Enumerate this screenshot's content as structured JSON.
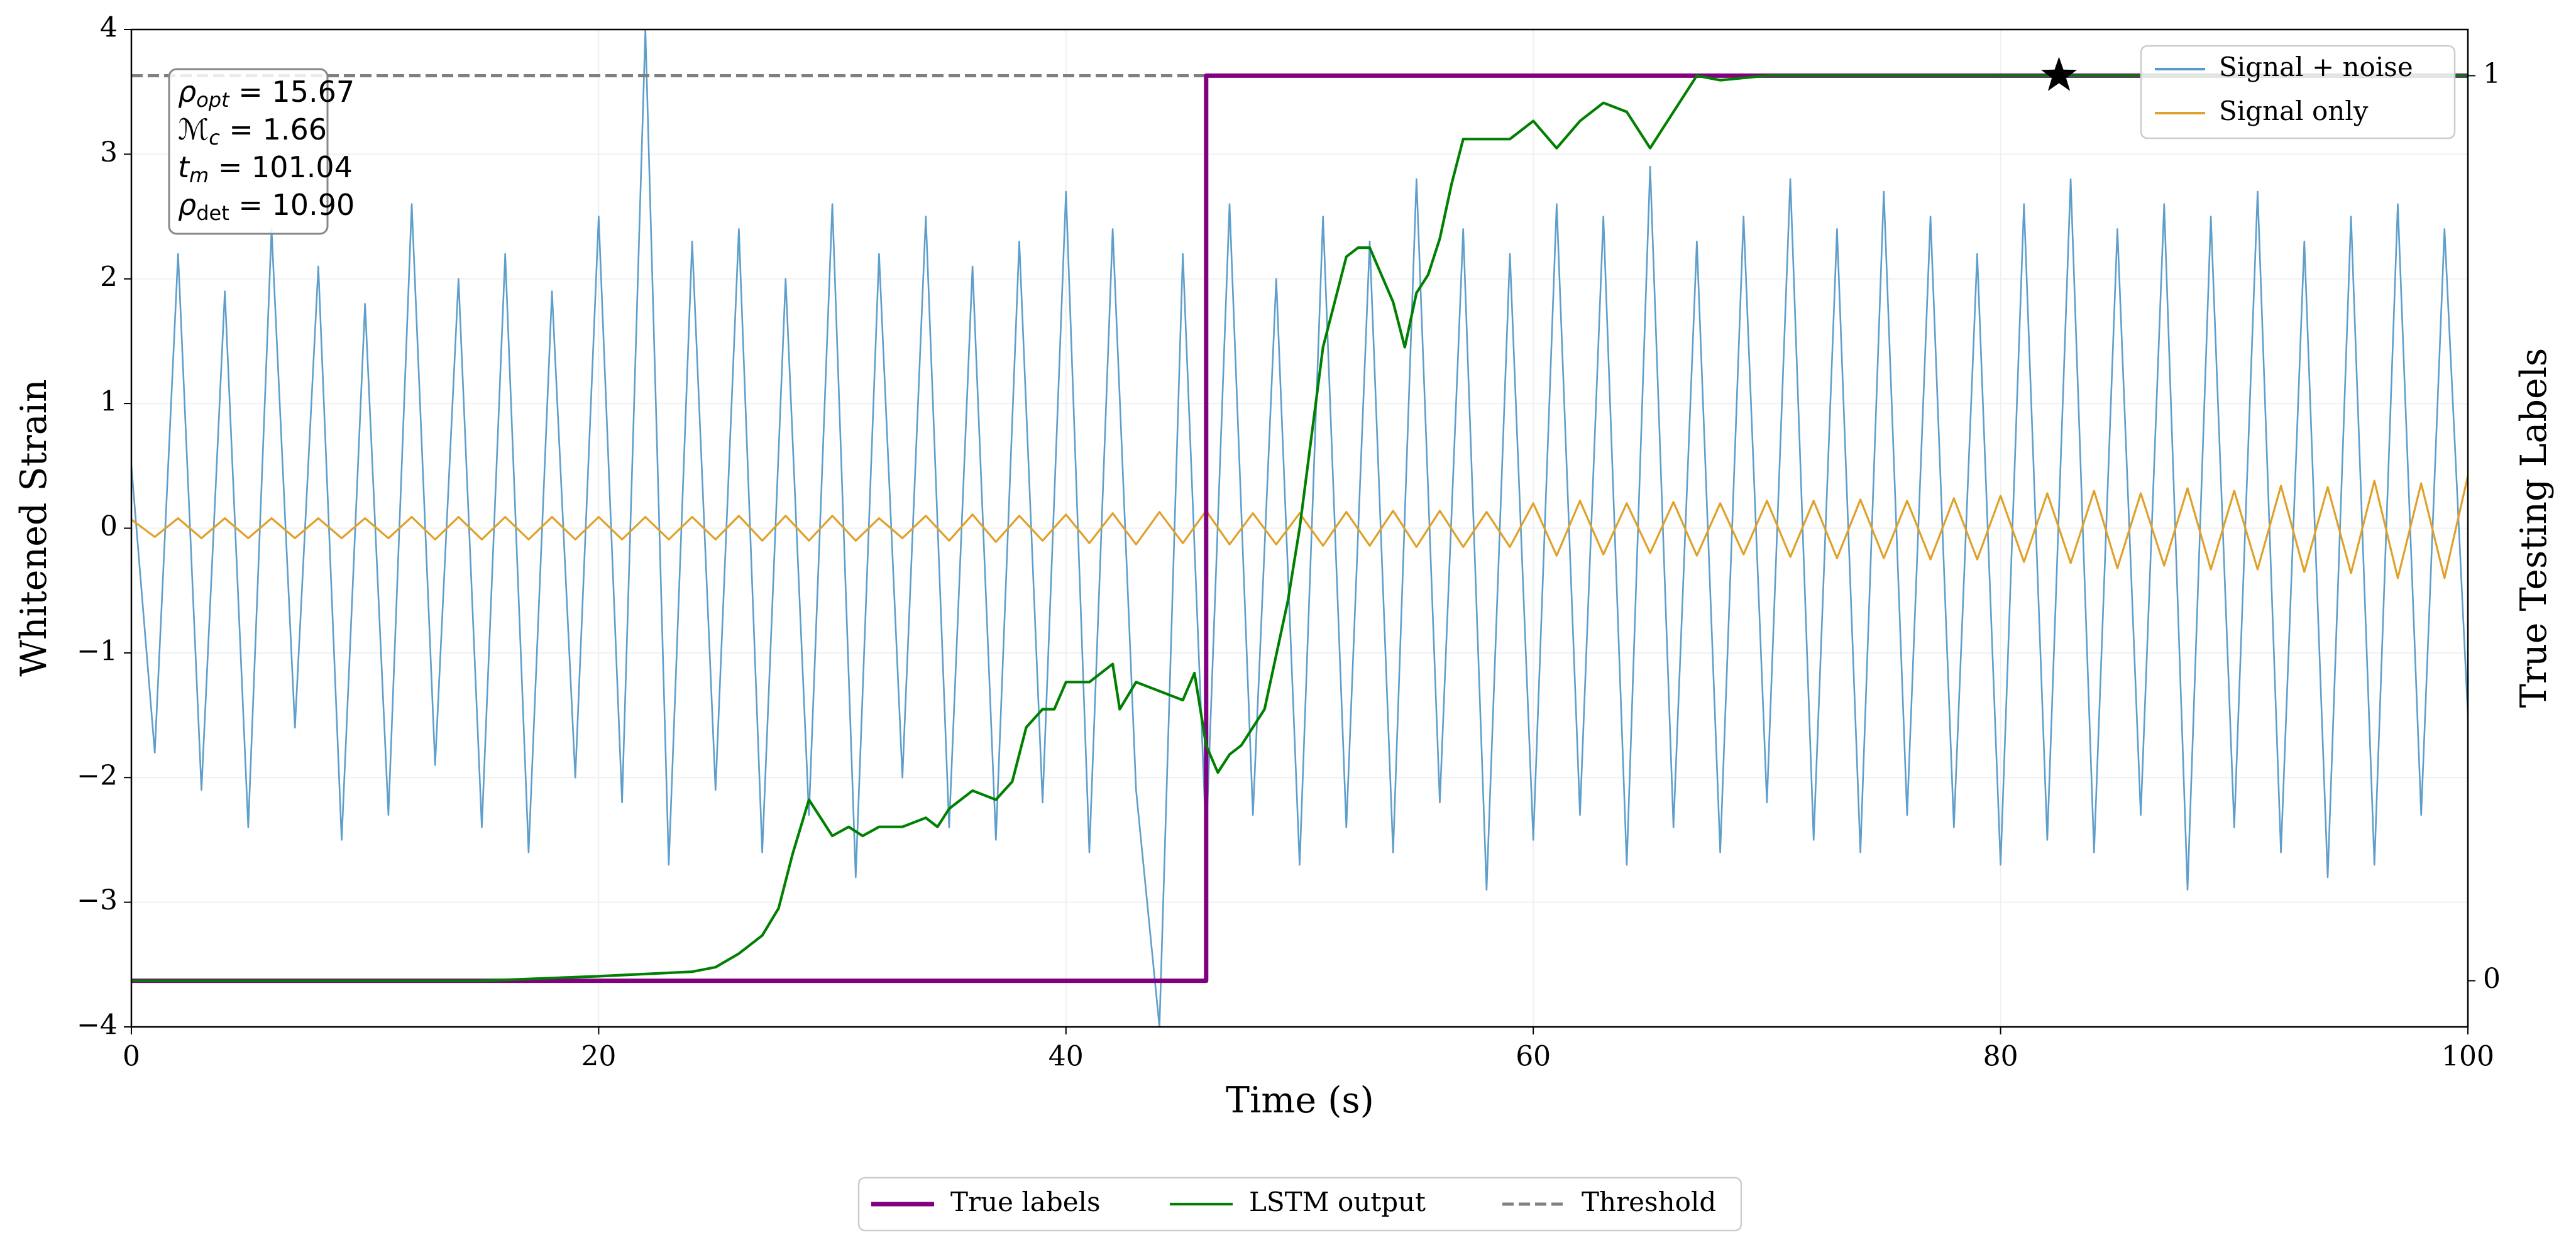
{
  "chart_data": {
    "type": "line",
    "xlabel": "Time (s)",
    "ylabel": "Whitened Strain",
    "y2label": "True Testing Labels",
    "xlim": [
      0,
      100
    ],
    "xticks": [
      0,
      20,
      40,
      60,
      80,
      100
    ],
    "ylim": [
      -4,
      4
    ],
    "yticks": [
      {
        "value": -4,
        "label": "−4"
      },
      {
        "value": -3,
        "label": "−3"
      },
      {
        "value": -2,
        "label": "−2"
      },
      {
        "value": -1,
        "label": "−1"
      },
      0,
      1,
      2,
      3,
      4
    ],
    "y2lim": [
      -0.051,
      1.051
    ],
    "y2ticks": [
      0,
      1
    ],
    "grid": true,
    "x": [
      0,
      1,
      2,
      3,
      4,
      5,
      6,
      7,
      8,
      9,
      10,
      11,
      12,
      13,
      14,
      15,
      16,
      17,
      18,
      19,
      20,
      21,
      22,
      23,
      24,
      25,
      26,
      27,
      28,
      29,
      30,
      31,
      32,
      33,
      34,
      35,
      36,
      37,
      38,
      39,
      40,
      41,
      42,
      43,
      44,
      45,
      46,
      47,
      48,
      49,
      50,
      51,
      52,
      53,
      54,
      55,
      56,
      57,
      58,
      59,
      60,
      61,
      62,
      63,
      64,
      65,
      66,
      67,
      68,
      69,
      70,
      71,
      72,
      73,
      74,
      75,
      76,
      77,
      78,
      79,
      80,
      81,
      82,
      83,
      84,
      85,
      86,
      87,
      88,
      89,
      90,
      91,
      92,
      93,
      94,
      95,
      96,
      97,
      98,
      99,
      100
    ],
    "series": [
      {
        "name": "Signal + noise",
        "color": "#5599c8",
        "legend": "upper right",
        "values": [
          0.5,
          -1.8,
          2.2,
          -2.1,
          1.9,
          -2.4,
          2.4,
          -1.6,
          2.1,
          -2.5,
          1.8,
          -2.3,
          2.6,
          -1.9,
          2.0,
          -2.4,
          2.2,
          -2.6,
          1.9,
          -2.0,
          2.5,
          -2.2,
          4.0,
          -2.7,
          2.3,
          -2.1,
          2.4,
          -2.6,
          2.0,
          -2.3,
          2.6,
          -2.8,
          2.2,
          -2.0,
          2.5,
          -2.4,
          2.1,
          -2.5,
          2.3,
          -2.2,
          2.7,
          -2.6,
          2.4,
          -2.1,
          -4.0,
          2.2,
          -2.5,
          2.6,
          -2.3,
          2.0,
          -2.7,
          2.5,
          -2.4,
          2.3,
          -2.6,
          2.8,
          -2.2,
          2.4,
          -2.9,
          2.2,
          -2.5,
          2.6,
          -2.3,
          2.5,
          -2.7,
          2.9,
          -2.4,
          2.3,
          -2.6,
          2.5,
          -2.2,
          2.8,
          -2.5,
          2.4,
          -2.6,
          2.7,
          -2.3,
          2.5,
          -2.4,
          2.2,
          -2.7,
          2.6,
          -2.5,
          2.8,
          -2.6,
          2.4,
          -2.3,
          2.6,
          -2.9,
          2.5,
          -2.4,
          2.7,
          -2.6,
          2.3,
          -2.8,
          2.5,
          -2.7,
          2.6,
          -2.3,
          2.4,
          -1.5
        ]
      },
      {
        "name": "Signal only",
        "color": "#e0a12a",
        "legend": "upper right",
        "values": [
          0.07,
          -0.07,
          0.08,
          -0.08,
          0.08,
          -0.08,
          0.08,
          -0.08,
          0.08,
          -0.08,
          0.08,
          -0.08,
          0.09,
          -0.09,
          0.09,
          -0.09,
          0.09,
          -0.09,
          0.09,
          -0.09,
          0.09,
          -0.09,
          0.09,
          -0.09,
          0.09,
          -0.09,
          0.1,
          -0.1,
          0.1,
          -0.1,
          0.1,
          -0.1,
          0.08,
          -0.08,
          0.1,
          -0.1,
          0.11,
          -0.11,
          0.1,
          -0.1,
          0.11,
          -0.12,
          0.12,
          -0.13,
          0.13,
          -0.12,
          0.14,
          -0.13,
          0.12,
          -0.13,
          0.12,
          -0.14,
          0.13,
          -0.14,
          0.14,
          -0.15,
          0.14,
          -0.15,
          0.13,
          -0.15,
          0.2,
          -0.22,
          0.22,
          -0.21,
          0.2,
          -0.2,
          0.21,
          -0.22,
          0.2,
          -0.21,
          0.22,
          -0.23,
          0.22,
          -0.24,
          0.23,
          -0.24,
          0.22,
          -0.25,
          0.24,
          -0.25,
          0.26,
          -0.27,
          0.28,
          -0.28,
          0.3,
          -0.32,
          0.28,
          -0.3,
          0.32,
          -0.33,
          0.3,
          -0.33,
          0.34,
          -0.35,
          0.33,
          -0.36,
          0.38,
          -0.4,
          0.36,
          -0.4,
          0.42
        ]
      },
      {
        "name": "True labels",
        "color": "#800080",
        "axis": "y2",
        "legend": "lower center",
        "x": [
          0,
          46,
          46,
          100
        ],
        "values": [
          0,
          0,
          1,
          1
        ]
      },
      {
        "name": "LSTM output",
        "color": "#008000",
        "axis": "y2",
        "legend": "lower center",
        "x": [
          0,
          15,
          20,
          24,
          25,
          26,
          27,
          27.7,
          28.3,
          29,
          29.5,
          30,
          30.7,
          31.3,
          32,
          33,
          34,
          34.5,
          35,
          36,
          37,
          37.7,
          38.3,
          39,
          39.5,
          40,
          41,
          42,
          42.3,
          43,
          44,
          45,
          45.5,
          46,
          46.5,
          47,
          47.5,
          48,
          48.5,
          49,
          49.5,
          50,
          50.5,
          51,
          51.5,
          52,
          52.5,
          53,
          53.5,
          54,
          54.5,
          55,
          55.5,
          56,
          56.5,
          57,
          58,
          59,
          60,
          61,
          62,
          63,
          64,
          65,
          65.5,
          66,
          67,
          68,
          70,
          80,
          100
        ],
        "values": [
          0,
          0,
          0.005,
          0.01,
          0.015,
          0.03,
          0.05,
          0.08,
          0.14,
          0.2,
          0.18,
          0.16,
          0.17,
          0.16,
          0.17,
          0.17,
          0.18,
          0.17,
          0.19,
          0.21,
          0.2,
          0.22,
          0.28,
          0.3,
          0.3,
          0.33,
          0.33,
          0.35,
          0.3,
          0.33,
          0.32,
          0.31,
          0.34,
          0.26,
          0.23,
          0.25,
          0.26,
          0.28,
          0.3,
          0.36,
          0.42,
          0.5,
          0.6,
          0.7,
          0.75,
          0.8,
          0.81,
          0.81,
          0.78,
          0.75,
          0.7,
          0.76,
          0.78,
          0.82,
          0.88,
          0.93,
          0.93,
          0.93,
          0.95,
          0.92,
          0.95,
          0.97,
          0.96,
          0.92,
          0.94,
          0.96,
          1.0,
          0.995,
          1.0,
          1.0,
          1.0
        ]
      }
    ],
    "threshold": {
      "name": "Threshold",
      "value": 1,
      "color": "#808080",
      "axis": "y2",
      "legend": "lower center"
    },
    "marker": {
      "x": 82.5,
      "value": 1,
      "axis": "y2",
      "color": "#000000"
    },
    "annotations": [
      {
        "symbol": "ρ",
        "sub": "opt",
        "text": " = 15.67"
      },
      {
        "symbol": "ℳ",
        "sub": "c",
        "text": " = 1.66"
      },
      {
        "symbol": "t",
        "sub": "m",
        "text": " = 101.04"
      },
      {
        "symbol": "ρ",
        "sub": "det",
        "text": " = 10.90"
      }
    ]
  }
}
